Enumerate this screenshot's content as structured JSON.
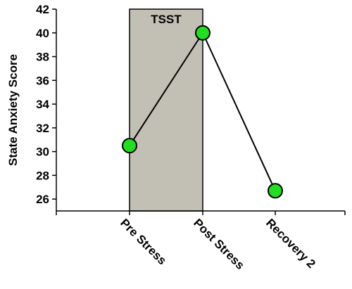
{
  "chart_data": {
    "type": "line",
    "title": "",
    "xlabel": "",
    "ylabel": "State Anxiety Score",
    "categories": [
      "Pre Stress",
      "Post Stress",
      "Recovery 2"
    ],
    "series": [
      {
        "values": [
          30.5,
          40,
          26.7
        ]
      }
    ],
    "ylim": [
      25,
      42
    ],
    "yticks": [
      26,
      28,
      30,
      32,
      34,
      36,
      38,
      40,
      42
    ],
    "grid": false,
    "legend": "none",
    "shaded_region": {
      "label": "TSST",
      "from": "Pre Stress",
      "to": "Post Stress"
    },
    "colors": {
      "marker_fill": "#22dd22",
      "marker_stroke": "#000000",
      "line": "#000000",
      "band_fill": "#c2c0b4",
      "band_stroke": "#000000"
    }
  }
}
